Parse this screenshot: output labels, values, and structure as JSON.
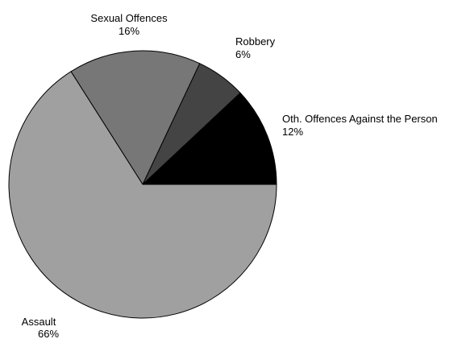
{
  "chart_data": {
    "type": "pie",
    "title": "",
    "slices": [
      {
        "label": "Oth. Offences Against the Person",
        "value": 12,
        "value_label": "12%",
        "color": "#000000"
      },
      {
        "label": "Robbery",
        "value": 6,
        "value_label": "6%",
        "color": "#444444"
      },
      {
        "label": "Sexual Offences",
        "value": 16,
        "value_label": "16%",
        "color": "#777777"
      },
      {
        "label": "Assault",
        "value": 66,
        "value_label": "66%",
        "color": "#a0a0a0"
      }
    ],
    "start": "3 o'clock",
    "direction": "counter-clockwise",
    "legend": "none"
  }
}
